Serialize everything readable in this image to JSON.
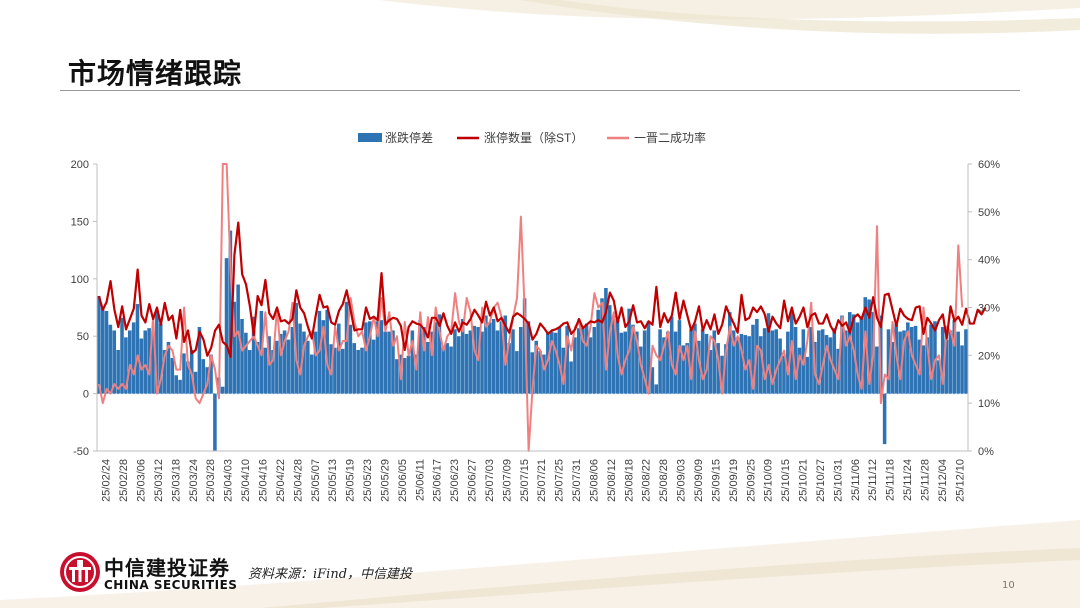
{
  "page": {
    "title": "市场情绪跟踪",
    "source": "资料来源：iFind，中信建投",
    "page_number": "10",
    "logo_cn": "中信建投证券",
    "logo_en": "CHINA SECURITIES"
  },
  "chart_data": {
    "type": "bar",
    "legend_position": "top",
    "left_axis": {
      "min": -50,
      "max": 200,
      "ticks": [
        "200",
        "150",
        "100",
        "50",
        "0",
        "-50"
      ]
    },
    "right_axis": {
      "min": 0,
      "max": 60,
      "ticks": [
        "60%",
        "50%",
        "40%",
        "30%",
        "20%",
        "10%",
        "0%"
      ]
    },
    "x_tick_labels": [
      "25/02/24",
      "25/02/28",
      "25/03/06",
      "25/03/12",
      "25/03/18",
      "25/03/24",
      "25/03/28",
      "25/04/03",
      "25/04/10",
      "25/04/16",
      "25/04/22",
      "25/04/28",
      "25/05/07",
      "25/05/13",
      "25/05/19",
      "25/05/23",
      "25/05/29",
      "25/06/05",
      "25/06/11",
      "25/06/17",
      "25/06/23",
      "25/06/27",
      "25/07/03",
      "25/07/09",
      "25/07/15",
      "25/07/21",
      "25/07/25",
      "25/07/31",
      "25/08/06",
      "25/08/12",
      "25/08/18",
      "25/08/22",
      "25/08/28",
      "25/09/03",
      "25/09/09",
      "25/09/15",
      "25/09/19",
      "25/09/25",
      "25/10/09",
      "25/10/15",
      "25/10/21",
      "25/10/27",
      "25/10/31",
      "25/11/06",
      "25/11/12",
      "25/11/18",
      "25/11/24",
      "25/11/28",
      "25/12/04",
      "25/12/10"
    ],
    "colors": {
      "bar": "#2e74b5",
      "line1": "#c00000",
      "line2": "#f08080"
    },
    "series": [
      {
        "name": "涨跌停差",
        "type": "bar",
        "axis": "left",
        "values": [
          85,
          75,
          72,
          60,
          55,
          38,
          66,
          49,
          55,
          62,
          78,
          48,
          55,
          57,
          53,
          72,
          61,
          38,
          45,
          31,
          16,
          12,
          35,
          28,
          38,
          19,
          58,
          30,
          23,
          34,
          -50,
          14,
          6,
          118,
          142,
          80,
          95,
          65,
          53,
          38,
          67,
          45,
          72,
          40,
          50,
          38,
          46,
          52,
          55,
          47,
          58,
          79,
          61,
          54,
          46,
          34,
          54,
          72,
          64,
          73,
          43,
          40,
          61,
          39,
          80,
          60,
          44,
          38,
          40,
          62,
          63,
          47,
          63,
          64,
          54,
          54,
          55,
          30,
          34,
          31,
          33,
          55,
          34,
          64,
          58,
          45,
          54,
          62,
          69,
          41,
          44,
          41,
          56,
          50,
          65,
          52,
          55,
          59,
          58,
          54,
          68,
          62,
          65,
          55,
          63,
          68,
          44,
          56,
          37,
          58,
          83,
          63,
          36,
          46,
          37,
          34,
          54,
          54,
          53,
          58,
          40,
          59,
          28,
          49,
          57,
          57,
          61,
          49,
          58,
          73,
          83,
          92,
          77,
          68,
          65,
          53,
          54,
          74,
          60,
          54,
          41,
          55,
          63,
          23,
          8,
          56,
          49,
          54,
          67,
          54,
          64,
          42,
          44,
          56,
          61,
          46,
          56,
          52,
          38,
          55,
          44,
          33,
          43,
          71,
          55,
          49,
          52,
          51,
          50,
          60,
          65,
          50,
          57,
          70,
          55,
          56,
          48,
          33,
          54,
          73,
          58,
          40,
          56,
          32,
          58,
          45,
          55,
          56,
          51,
          49,
          57,
          39,
          68,
          55,
          71,
          69,
          62,
          66,
          84,
          82,
          71,
          41,
          68,
          -44,
          56,
          45,
          61,
          54,
          55,
          62,
          58,
          59,
          47,
          42,
          49,
          60,
          63,
          29,
          58,
          47,
          55,
          64,
          54,
          42,
          56
        ]
      },
      {
        "name": "涨停数量（除ST）",
        "type": "line",
        "axis": "left",
        "values": [
          85,
          73,
          80,
          98,
          73,
          58,
          76,
          56,
          65,
          74,
          108,
          68,
          62,
          78,
          65,
          75,
          60,
          79,
          64,
          68,
          48,
          73,
          45,
          55,
          35,
          38,
          54,
          47,
          33,
          40,
          55,
          60,
          45,
          42,
          32,
          121,
          149,
          104,
          95,
          76,
          51,
          85,
          77,
          99,
          70,
          65,
          75,
          63,
          64,
          61,
          65,
          90,
          75,
          70,
          58,
          48,
          68,
          86,
          75,
          76,
          62,
          60,
          72,
          78,
          90,
          73,
          55,
          56,
          56,
          75,
          65,
          67,
          64,
          105,
          60,
          64,
          66,
          65,
          59,
          38,
          58,
          63,
          61,
          60,
          56,
          49,
          66,
          66,
          59,
          70,
          59,
          52,
          62,
          54,
          62,
          60,
          65,
          73,
          68,
          62,
          80,
          68,
          75,
          63,
          66,
          59,
          53,
          67,
          70,
          68,
          65,
          61,
          47,
          52,
          61,
          57,
          52,
          55,
          56,
          58,
          61,
          62,
          52,
          56,
          65,
          57,
          60,
          63,
          62,
          64,
          62,
          71,
          88,
          81,
          62,
          75,
          58,
          63,
          77,
          62,
          63,
          57,
          63,
          60,
          93,
          58,
          70,
          62,
          68,
          88,
          65,
          81,
          68,
          55,
          63,
          76,
          55,
          64,
          56,
          69,
          52,
          60,
          76,
          68,
          61,
          53,
          86,
          64,
          66,
          75,
          71,
          76,
          69,
          54,
          67,
          61,
          57,
          81,
          63,
          75,
          61,
          67,
          75,
          58,
          68,
          70,
          61,
          61,
          69,
          59,
          53,
          64,
          59,
          62,
          53,
          66,
          69,
          65,
          75,
          66,
          84,
          66,
          58,
          86,
          87,
          73,
          59,
          74,
          68,
          65,
          64,
          75,
          76,
          52,
          66,
          61,
          55,
          64,
          69,
          48,
          76,
          63,
          67,
          60,
          74,
          61,
          61,
          73,
          69,
          75
        ]
      },
      {
        "name": "一晋二成功率",
        "type": "line",
        "axis": "right",
        "values": [
          14,
          10,
          13,
          12,
          14,
          13,
          14,
          13,
          18,
          16,
          20,
          17,
          18,
          16,
          28,
          12,
          15,
          20,
          22,
          21,
          17,
          17,
          30,
          18,
          16,
          11,
          10,
          12,
          14,
          20,
          17,
          11,
          60,
          60,
          38,
          24,
          25,
          21,
          22,
          23,
          24,
          22,
          20,
          29,
          18,
          19,
          30,
          20,
          23,
          25,
          31,
          19,
          16,
          22,
          24,
          25,
          20,
          21,
          26,
          18,
          16,
          26,
          21,
          23,
          23,
          32,
          27,
          24,
          25,
          21,
          24,
          28,
          24,
          32,
          25,
          29,
          22,
          24,
          15,
          27,
          20,
          23,
          17,
          29,
          21,
          28,
          20,
          30,
          25,
          21,
          24,
          25,
          33,
          27,
          25,
          32,
          29,
          21,
          19,
          30,
          26,
          27,
          30,
          31,
          28,
          18,
          23,
          28,
          32,
          49,
          29,
          0,
          13,
          22,
          21,
          17,
          19,
          23,
          21,
          18,
          14,
          24,
          21,
          26,
          27,
          23,
          22,
          26,
          33,
          30,
          31,
          17,
          25,
          29,
          20,
          16,
          19,
          21,
          26,
          23,
          18,
          15,
          12,
          22,
          20,
          19,
          22,
          25,
          18,
          16,
          22,
          19,
          22,
          15,
          25,
          19,
          15,
          17,
          24,
          23,
          19,
          12,
          21,
          26,
          22,
          24,
          21,
          17,
          19,
          13,
          22,
          21,
          15,
          18,
          14,
          17,
          19,
          21,
          16,
          23,
          15,
          20,
          18,
          23,
          31,
          16,
          14,
          18,
          22,
          19,
          17,
          15,
          28,
          22,
          24,
          21,
          16,
          13,
          25,
          14,
          20,
          47,
          10,
          16,
          15,
          27,
          20,
          15,
          23,
          25,
          20,
          18,
          16,
          30,
          22,
          15,
          19,
          20,
          14,
          26,
          25,
          22,
          43,
          30
        ]
      }
    ]
  }
}
